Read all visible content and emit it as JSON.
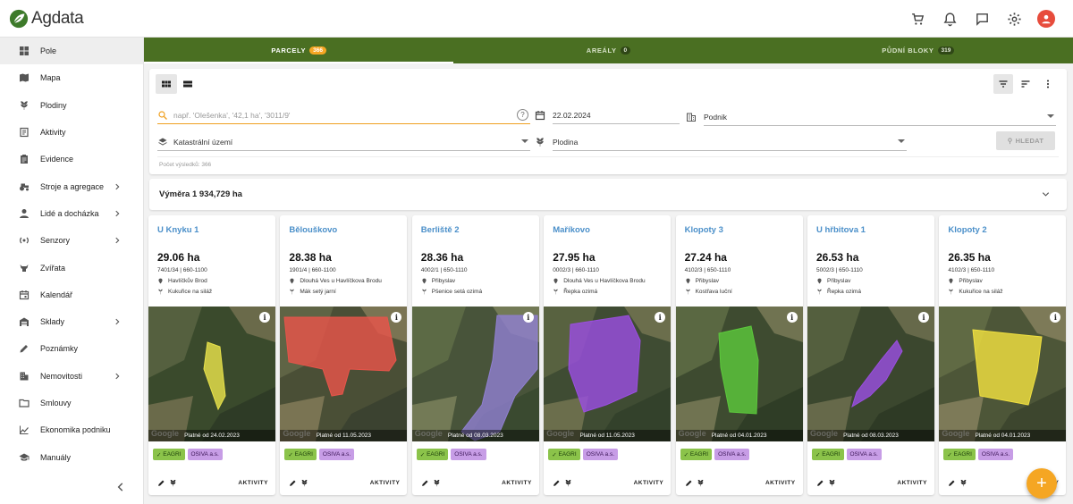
{
  "app": {
    "name": "Agdata"
  },
  "header": {
    "icons": [
      "cart-icon",
      "bell-icon",
      "chat-icon",
      "gear-icon",
      "account-icon"
    ]
  },
  "sidebar": {
    "items": [
      {
        "label": "Pole",
        "icon": "field-icon",
        "active": true,
        "expandable": false
      },
      {
        "label": "Mapa",
        "icon": "map-icon",
        "expandable": false
      },
      {
        "label": "Plodiny",
        "icon": "crop-icon",
        "expandable": false
      },
      {
        "label": "Aktivity",
        "icon": "activity-icon",
        "expandable": false
      },
      {
        "label": "Evidence",
        "icon": "clipboard-icon",
        "expandable": false
      },
      {
        "label": "Stroje a agregace",
        "icon": "tractor-icon",
        "expandable": true
      },
      {
        "label": "Lidé a docházka",
        "icon": "person-icon",
        "expandable": true
      },
      {
        "label": "Senzory",
        "icon": "sensor-icon",
        "expandable": true
      },
      {
        "label": "Zvířata",
        "icon": "animal-icon",
        "expandable": false
      },
      {
        "label": "Kalendář",
        "icon": "calendar-icon",
        "expandable": false
      },
      {
        "label": "Sklady",
        "icon": "warehouse-icon",
        "expandable": true
      },
      {
        "label": "Poznámky",
        "icon": "pencil-icon",
        "expandable": false
      },
      {
        "label": "Nemovitosti",
        "icon": "building-icon",
        "expandable": true
      },
      {
        "label": "Smlouvy",
        "icon": "folder-icon",
        "expandable": false
      },
      {
        "label": "Ekonomika podniku",
        "icon": "chart-icon",
        "expandable": false
      },
      {
        "label": "Manuály",
        "icon": "school-icon",
        "expandable": false
      }
    ]
  },
  "tabs": [
    {
      "label": "PARCELY",
      "count": "366",
      "active": true
    },
    {
      "label": "AREÁLY",
      "count": "0",
      "active": false
    },
    {
      "label": "PŮDNÍ BLOKY",
      "count": "319",
      "active": false
    }
  ],
  "filters": {
    "search_placeholder": "např. 'Olešenka', '42,1 ha', '3011/9'",
    "help_label": "?",
    "date": "22.02.2024",
    "podnik_placeholder": "Podnik",
    "katastr_placeholder": "Katastrální území",
    "plodina_placeholder": "Plodina",
    "search_button": "HLEDAT",
    "result_count": "Počet výsledků: 366"
  },
  "area_summary": "Výměra 1 934,729 ha",
  "cards": [
    {
      "name": "U Knyku 1",
      "area": "29.06 ha",
      "plots": "7401/34 | 660-1100",
      "location": "Havlíčkův Brod",
      "crop": "Kukuřice na siláž",
      "valid": "Platné od 24.02.2023",
      "tags": [
        "EAGRI",
        "OSIVA a.s."
      ],
      "action": "AKTIVITY",
      "color": "#e8e24a"
    },
    {
      "name": "Bělouškovo",
      "area": "28.38 ha",
      "plots": "1901/4 | 660-1100",
      "location": "Dlouhá Ves u Havlíčkova Brodu",
      "crop": "Mák setý jarní",
      "valid": "Platné od 11.05.2023",
      "tags": [
        "EAGRI",
        "OSIVA a.s."
      ],
      "action": "AKTIVITY",
      "color": "#e8544a"
    },
    {
      "name": "Berliště 2",
      "area": "28.36 ha",
      "plots": "4002/1 | 650-1110",
      "location": "Přibyslav",
      "crop": "Pšenice setá ozimá",
      "valid": "Platné od 08.03.2023",
      "tags": [
        "EAGRI",
        "OSIVA a.s."
      ],
      "action": "AKTIVITY",
      "color": "#8f7fd0"
    },
    {
      "name": "Maříkovo",
      "area": "27.95 ha",
      "plots": "0002/3 | 660-1110",
      "location": "Dlouhá Ves u Havlíčkova Brodu",
      "crop": "Řepka ozimá",
      "valid": "Platné od 11.05.2023",
      "tags": [
        "EAGRI",
        "OSIVA a.s."
      ],
      "action": "AKTIVITY",
      "color": "#9a4ee0"
    },
    {
      "name": "Klopoty 3",
      "area": "27.24 ha",
      "plots": "4102/3 | 650-1110",
      "location": "Přibyslav",
      "crop": "Kostřava luční",
      "valid": "Platné od 04.01.2023",
      "tags": [
        "EAGRI",
        "OSIVA a.s."
      ],
      "action": "AKTIVITY",
      "color": "#5cc83c"
    },
    {
      "name": "U hřbitova 1",
      "area": "26.53 ha",
      "plots": "5002/3 | 650-1110",
      "location": "Přibyslav",
      "crop": "Řepka ozimá",
      "valid": "Platné od 08.03.2023",
      "tags": [
        "EAGRI",
        "OSIVA a.s."
      ],
      "action": "AKTIVITY",
      "color": "#9a4ee0"
    },
    {
      "name": "Klopoty 2",
      "area": "26.35 ha",
      "plots": "4102/3 | 650-1110",
      "location": "Přibyslav",
      "crop": "Kukuřice na siláž",
      "valid": "Platné od 04.01.2023",
      "tags": [
        "EAGRI",
        "OSIVA a.s."
      ],
      "action": "AKTIVITY",
      "color": "#f0e040"
    }
  ],
  "fab_label": "+",
  "colors": {
    "accent": "#f5a623",
    "tab_bar": "#4a6f22",
    "link": "#4a8fc9"
  }
}
